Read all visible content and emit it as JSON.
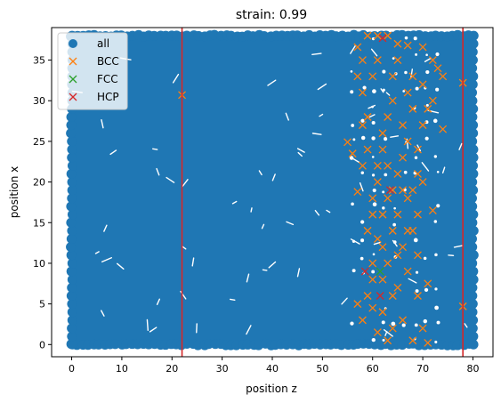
{
  "chart_data": {
    "type": "scatter",
    "title": "strain: 0.99",
    "xlabel": "position z",
    "ylabel": "position x",
    "xlim": [
      -4,
      84
    ],
    "ylim": [
      -1.5,
      39
    ],
    "xticks": [
      0,
      10,
      20,
      30,
      40,
      50,
      60,
      70,
      80
    ],
    "yticks": [
      0,
      5,
      10,
      15,
      20,
      25,
      30,
      35
    ],
    "vlines": [
      22,
      78
    ],
    "vline_color": "#d62728",
    "legend_position": "upper-left",
    "all_region": {
      "x_min": 0,
      "x_max": 80,
      "y_min": 0,
      "y_max": 38
    },
    "series": [
      {
        "name": "all",
        "marker": "o",
        "color": "#1f77b4",
        "values": "dense cloud covering z 0-80, x 0-38"
      },
      {
        "name": "BCC",
        "marker": "x",
        "color": "#ff7f0e",
        "points": [
          [
            22,
            30.7
          ],
          [
            78,
            4.7
          ],
          [
            78,
            32.2
          ],
          [
            74,
            26.5
          ],
          [
            72,
            16.5
          ],
          [
            55,
            24.9
          ],
          [
            56,
            23.5
          ],
          [
            57,
            18.8
          ],
          [
            57,
            36.6
          ],
          [
            59,
            38
          ],
          [
            61,
            38
          ],
          [
            63,
            38
          ],
          [
            65,
            37
          ],
          [
            67,
            36.8
          ],
          [
            70,
            36.6
          ],
          [
            72,
            35
          ],
          [
            73,
            34
          ],
          [
            74,
            33
          ],
          [
            57,
            5
          ],
          [
            58,
            3
          ],
          [
            59,
            6
          ],
          [
            60,
            4.5
          ],
          [
            60,
            8
          ],
          [
            61,
            1.5
          ],
          [
            62,
            4
          ],
          [
            62,
            12
          ],
          [
            63,
            0.5
          ],
          [
            63,
            10
          ],
          [
            64,
            14
          ],
          [
            64,
            2
          ],
          [
            65,
            7
          ],
          [
            65,
            16
          ],
          [
            66,
            12
          ],
          [
            66,
            3
          ],
          [
            67,
            9
          ],
          [
            67,
            18
          ],
          [
            68,
            0.5
          ],
          [
            68,
            14
          ],
          [
            69,
            6
          ],
          [
            69,
            11
          ],
          [
            70,
            2
          ],
          [
            70,
            20
          ],
          [
            71,
            7.5
          ],
          [
            71,
            0.2
          ],
          [
            59,
            14
          ],
          [
            60,
            16
          ],
          [
            60,
            18
          ],
          [
            61,
            20
          ],
          [
            61,
            22
          ],
          [
            62,
            24
          ],
          [
            62,
            26
          ],
          [
            63,
            28
          ],
          [
            64,
            30
          ],
          [
            64,
            33
          ],
          [
            65,
            35
          ],
          [
            66,
            23
          ],
          [
            66,
            27
          ],
          [
            67,
            25
          ],
          [
            67,
            31
          ],
          [
            68,
            29
          ],
          [
            68,
            33
          ],
          [
            69,
            24
          ],
          [
            69,
            21
          ],
          [
            70,
            27
          ],
          [
            70,
            32
          ],
          [
            71,
            29
          ],
          [
            72,
            30
          ],
          [
            59,
            28
          ],
          [
            58,
            31
          ],
          [
            60,
            33
          ],
          [
            61,
            35
          ],
          [
            63,
            22
          ],
          [
            64,
            19
          ],
          [
            65,
            21
          ],
          [
            58,
            22
          ],
          [
            59,
            24
          ],
          [
            58,
            27
          ],
          [
            57,
            33
          ],
          [
            58,
            35
          ],
          [
            60,
            10
          ],
          [
            61,
            13
          ],
          [
            62,
            16
          ],
          [
            63,
            18
          ],
          [
            66,
            19
          ],
          [
            67,
            14
          ],
          [
            68,
            19
          ],
          [
            69,
            16
          ],
          [
            65,
            11
          ],
          [
            64,
            6
          ],
          [
            62,
            8
          ]
        ]
      },
      {
        "name": "FCC",
        "marker": "x",
        "color": "#2ca02c",
        "points": [
          [
            61.5,
            9
          ]
        ]
      },
      {
        "name": "HCP",
        "marker": "x",
        "color": "#d62728",
        "points": [
          [
            58.5,
            9
          ],
          [
            61.5,
            6
          ],
          [
            63.5,
            19
          ],
          [
            62,
            37.7
          ]
        ]
      }
    ]
  }
}
